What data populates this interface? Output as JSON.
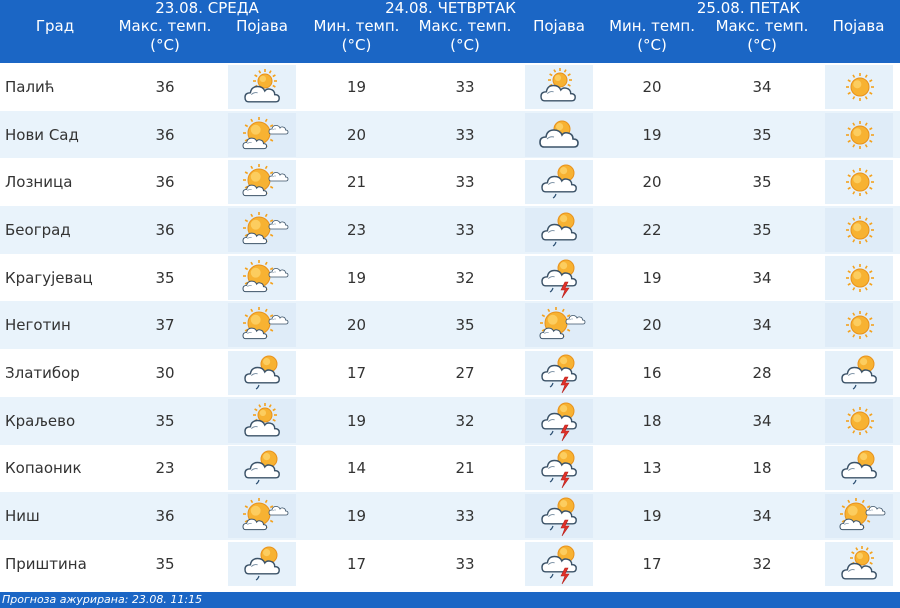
{
  "header": {
    "days": [
      {
        "label": "23.08. СРЕДА"
      },
      {
        "label": "24.08. ЧЕТВРТАК"
      },
      {
        "label": "25.08. ПЕТАК"
      }
    ],
    "city": "Град",
    "max_l1": "Макс. темп.",
    "min_l1": "Мин. темп.",
    "unit": "(°C)",
    "phenomenon": "Појава"
  },
  "rows": [
    {
      "city": "Палић",
      "d1_max": "36",
      "d1_icon": "sun-cloud-icon",
      "d2_min": "19",
      "d2_max": "33",
      "d2_icon": "cloud-sun-icon",
      "d3_min": "20",
      "d3_max": "34",
      "d3_icon": "sun-icon"
    },
    {
      "city": "Нови Сад",
      "d1_max": "36",
      "d1_icon": "sunny-cloud-icon",
      "d2_min": "20",
      "d2_max": "33",
      "d2_icon": "cloud-peek-sun-icon",
      "d3_min": "19",
      "d3_max": "35",
      "d3_icon": "sun-icon"
    },
    {
      "city": "Лозница",
      "d1_max": "36",
      "d1_icon": "sunny-cloud-icon",
      "d2_min": "21",
      "d2_max": "33",
      "d2_icon": "cloud-sun-shower-icon",
      "d3_min": "20",
      "d3_max": "35",
      "d3_icon": "sun-icon"
    },
    {
      "city": "Београд",
      "d1_max": "36",
      "d1_icon": "sunny-cloud-icon",
      "d2_min": "23",
      "d2_max": "33",
      "d2_icon": "cloud-sun-shower-icon",
      "d3_min": "22",
      "d3_max": "35",
      "d3_icon": "sun-icon"
    },
    {
      "city": "Крагујевац",
      "d1_max": "35",
      "d1_icon": "sunny-cloud-icon",
      "d2_min": "19",
      "d2_max": "32",
      "d2_icon": "thunderstorm-icon",
      "d3_min": "19",
      "d3_max": "34",
      "d3_icon": "sun-icon"
    },
    {
      "city": "Неготин",
      "d1_max": "37",
      "d1_icon": "sunny-cloud-icon",
      "d2_min": "20",
      "d2_max": "35",
      "d2_icon": "sunny-cloud-icon",
      "d3_min": "20",
      "d3_max": "34",
      "d3_icon": "sun-icon"
    },
    {
      "city": "Златибор",
      "d1_max": "30",
      "d1_icon": "cloud-sun-shower-icon",
      "d2_min": "17",
      "d2_max": "27",
      "d2_icon": "thunderstorm-icon",
      "d3_min": "16",
      "d3_max": "28",
      "d3_icon": "cloud-sun-shower-icon"
    },
    {
      "city": "Краљево",
      "d1_max": "35",
      "d1_icon": "sun-cloud-icon",
      "d2_min": "19",
      "d2_max": "32",
      "d2_icon": "thunderstorm-icon",
      "d3_min": "18",
      "d3_max": "34",
      "d3_icon": "sun-icon"
    },
    {
      "city": "Копаоник",
      "d1_max": "23",
      "d1_icon": "cloud-sun-shower-icon",
      "d2_min": "14",
      "d2_max": "21",
      "d2_icon": "thunderstorm-icon",
      "d3_min": "13",
      "d3_max": "18",
      "d3_icon": "cloud-sun-shower-icon"
    },
    {
      "city": "Ниш",
      "d1_max": "36",
      "d1_icon": "sunny-cloud-icon",
      "d2_min": "19",
      "d2_max": "33",
      "d2_icon": "thunderstorm-icon",
      "d3_min": "19",
      "d3_max": "34",
      "d3_icon": "sunny-cloud-icon"
    },
    {
      "city": "Приштина",
      "d1_max": "35",
      "d1_icon": "cloud-sun-shower-icon",
      "d2_min": "17",
      "d2_max": "33",
      "d2_icon": "thunderstorm-icon",
      "d3_min": "17",
      "d3_max": "32",
      "d3_icon": "sun-cloud-icon"
    }
  ],
  "footer": {
    "text": "Прогноза ажурирана:  23.08.  11:15"
  },
  "colors": {
    "header_bg": "#1b66c5",
    "row_alt": "#e9f3fb",
    "sun": "#f5a623",
    "cloud": "#ffffff",
    "bolt": "#e0322a"
  }
}
